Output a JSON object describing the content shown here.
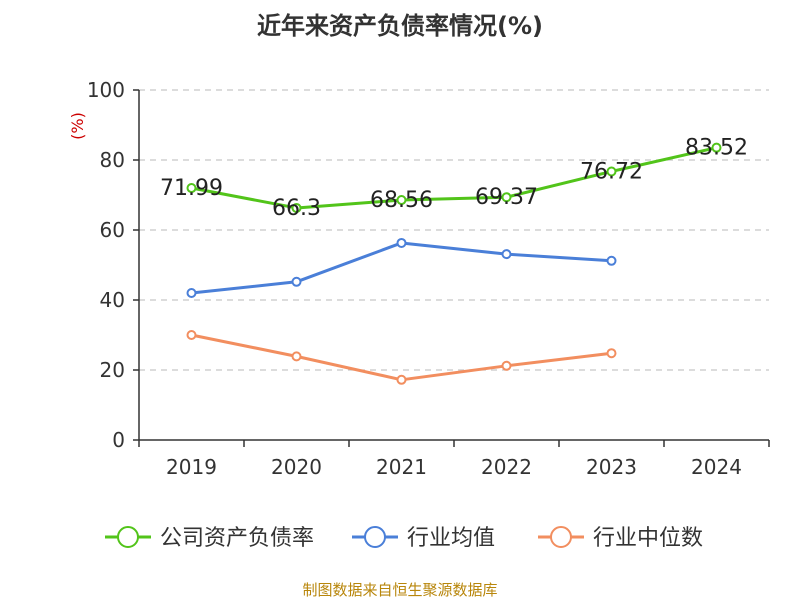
{
  "chart_data": {
    "type": "line",
    "title": "近年来资产负债率情况(%)",
    "ylabel": "(%)",
    "xlabel": "",
    "categories": [
      "2019",
      "2020",
      "2021",
      "2022",
      "2023",
      "2024"
    ],
    "ylim": [
      0,
      100
    ],
    "yticks": [
      0,
      20,
      40,
      60,
      80,
      100
    ],
    "grid": true,
    "legend_position": "bottom",
    "series": [
      {
        "name": "公司资产负债率",
        "color": "#52c41a",
        "values": [
          71.99,
          66.3,
          68.56,
          69.37,
          76.72,
          83.52
        ],
        "labels": [
          "71.99",
          "66.3",
          "68.56",
          "69.37",
          "76.72",
          "83.52"
        ]
      },
      {
        "name": "行业均值",
        "color": "#4a7fd8",
        "values": [
          42,
          45.2,
          56.3,
          53.1,
          51.2,
          null
        ]
      },
      {
        "name": "行业中位数",
        "color": "#f28e5f",
        "values": [
          30,
          23.9,
          17.2,
          21.2,
          24.8,
          null
        ]
      }
    ],
    "source": "制图数据来自恒生聚源数据库"
  }
}
